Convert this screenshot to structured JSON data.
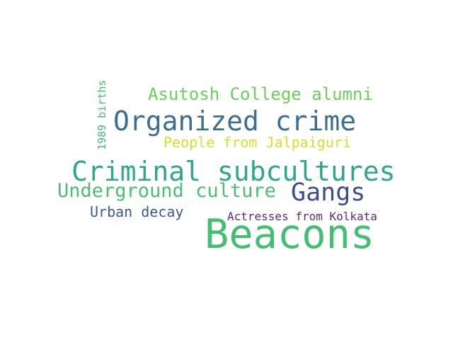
{
  "wordcloud": {
    "words": [
      {
        "text": "Beacons",
        "color": "#44be70"
      },
      {
        "text": "Criminal subcultures",
        "color": "#2fa78a"
      },
      {
        "text": "Organized crime",
        "color": "#3a6f92"
      },
      {
        "text": "Gangs",
        "color": "#3c4f8a"
      },
      {
        "text": "Underground culture",
        "color": "#4bbf6f"
      },
      {
        "text": "Asutosh College alumni",
        "color": "#6ccf5a"
      },
      {
        "text": "People from Jalpaiguri",
        "color": "#d3e12a"
      },
      {
        "text": "Urban decay",
        "color": "#3b5a8f"
      },
      {
        "text": "Actresses from Kolkata",
        "color": "#5b2b74"
      },
      {
        "text": "1989 births",
        "color": "#47b77a"
      }
    ]
  }
}
